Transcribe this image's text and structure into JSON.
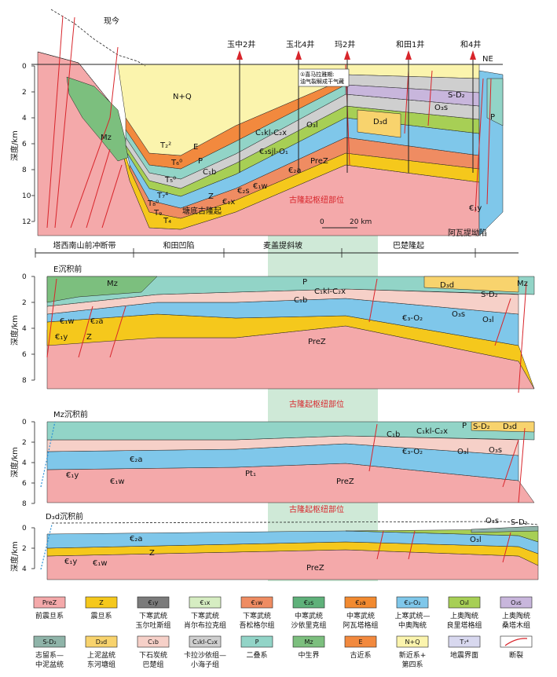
{
  "colors": {
    "PreZ": "#f4a9aa",
    "Z": "#f5c81c",
    "e1y": "#7b7b7b",
    "e1x": "#d6edc2",
    "e1w": "#ef8c62",
    "e2s": "#5fb17a",
    "e2a": "#f28a30",
    "e3O2": "#7fc7ea",
    "O3l": "#a7cf55",
    "O3s": "#c8b6dc",
    "SD2": "#8fb4a9",
    "D3d": "#f8d36d",
    "C1b": "#f6d0c8",
    "CklC2x": "#cfcfcf",
    "P": "#92d4c7",
    "Mz": "#7cbf7e",
    "E": "#f2893e",
    "NQ": "#fbf4ad",
    "T": "#d8d8ef",
    "fault": "#d8252b",
    "arch": "#cfe9d7",
    "line": "#222222"
  },
  "wells": [
    {
      "id": "w1",
      "name": "玉中2井"
    },
    {
      "id": "w2",
      "name": "玉北4井"
    },
    {
      "id": "w3",
      "name": "玛2井"
    },
    {
      "id": "w4",
      "name": "和田1井"
    },
    {
      "id": "w5",
      "name": "和4井"
    }
  ],
  "p1": {
    "present": "现今",
    "ne": "NE",
    "axis": "深度/km",
    "ticks": [
      "0",
      "2",
      "4",
      "6",
      "8",
      "10",
      "12"
    ],
    "annotation_line1": "①喜马拉雅期:",
    "annotation_line2": "油气裂解成干气藏",
    "labels": {
      "NQ": "N+Q",
      "Mz": "Mz",
      "E": "E",
      "P": "P",
      "C1b": "C₁b",
      "Z": "Z",
      "PreZ": "PreZ",
      "CklC2x": "C₁kl-C₂x",
      "O3l": "O₃l",
      "e3sjl": "€₃sjl-O₁",
      "e2a": "€₂a",
      "e2s": "€₂s",
      "e1w": "€₁w",
      "e1x": "€₁x",
      "D3d": "D₃d",
      "O3s": "O₃s",
      "SD2": "S-D₂",
      "e1y": "€₁y",
      "T2": "T₂²",
      "T6": "T₆⁰",
      "T5": "T₅⁰",
      "T7": "T₇⁴",
      "T8": "T₈⁰",
      "T9": "T₉",
      "T4": "T₄",
      "Mzb": "P",
      "Ob": "O₃l"
    },
    "arch": "古隆起枢纽部位",
    "uplift": "塘底古隆起",
    "scale0": "0",
    "scale1": "20 km",
    "regions": [
      "塔西南山前冲断带",
      "和田凹陷",
      "麦盖提斜坡",
      "巴楚隆起",
      "阿瓦提坳陷"
    ]
  },
  "p2": {
    "title": "E沉积前",
    "axis": "深度/km",
    "ticks": [
      "0",
      "2",
      "4",
      "6",
      "8"
    ],
    "labels": {
      "Mz": "Mz",
      "P": "P",
      "CklC2x": "C₁kl-C₂x",
      "C1b": "C₁b",
      "D3d": "D₃d",
      "SD2": "S-D₂",
      "O3s": "O₃s",
      "O3l": "O₃l",
      "e3O2": "€₃-O₂",
      "e1w": "€₁w",
      "e2a": "€₂a",
      "e1y": "€₁y",
      "Z": "Z",
      "PreZ": "PreZ",
      "Mz2": "Mz"
    },
    "arch": "古隆起枢纽部位"
  },
  "p3": {
    "title": "Mz沉积前",
    "axis": "深度/km",
    "ticks": [
      "0",
      "2",
      "4",
      "6",
      "8"
    ],
    "labels": {
      "C1b": "C₁b",
      "CklC2x": "C₁kl-C₂x",
      "P": "P",
      "SD2": "S-D₂",
      "D3d": "D₃d",
      "e3O2": "€₃-O₂",
      "O3l": "O₃l",
      "O3s": "O₃s",
      "e2a": "€₂a",
      "e1y": "€₁y",
      "e1w": "€₁w",
      "Pt1": "Pt₁",
      "PreZ": "PreZ"
    },
    "arch": "古隆起枢纽部位"
  },
  "p4": {
    "title": "D₃d沉积前",
    "axis": "深度/km",
    "ticks": [
      "0",
      "2",
      "4"
    ],
    "labels": {
      "e2a": "€₂a",
      "Z": "Z",
      "e1y": "€₁y",
      "e1w": "€₁w",
      "PreZ": "PreZ",
      "O3s": "O₃s",
      "SD2": "S-D₂",
      "O3l": "O₃l"
    }
  },
  "legend": [
    {
      "id": "PreZ",
      "code": "PreZ",
      "l1": "前震旦系",
      "l2": ""
    },
    {
      "id": "Z",
      "code": "Z",
      "l1": "震旦系",
      "l2": ""
    },
    {
      "id": "e1y",
      "code": "€₁y",
      "l1": "下寒武统",
      "l2": "玉尔吐斯组"
    },
    {
      "id": "e1x",
      "code": "€₁x",
      "l1": "下寒武统",
      "l2": "肖尔布拉克组"
    },
    {
      "id": "e1w",
      "code": "€₁w",
      "l1": "下寒武统",
      "l2": "吾松格尔组"
    },
    {
      "id": "e2s",
      "code": "€₂s",
      "l1": "中寒武统",
      "l2": "沙依里克组"
    },
    {
      "id": "e2a",
      "code": "€₂a",
      "l1": "中寒武统",
      "l2": "阿瓦塔格组"
    },
    {
      "id": "e3O2",
      "code": "€₃-O₂",
      "l1": "上寒武统—",
      "l2": "中奥陶统"
    },
    {
      "id": "O3l",
      "code": "O₃l",
      "l1": "上奥陶统",
      "l2": "良里塔格组"
    },
    {
      "id": "O3s",
      "code": "O₃s",
      "l1": "上奥陶统",
      "l2": "桑塔木组"
    },
    {
      "id": "SD2",
      "code": "S-D₂",
      "l1": "志留系—",
      "l2": "中泥盆统"
    },
    {
      "id": "D3d",
      "code": "D₃d",
      "l1": "上泥盆统",
      "l2": "东河塘组"
    },
    {
      "id": "C1b",
      "code": "C₁b",
      "l1": "下石炭统",
      "l2": "巴楚组"
    },
    {
      "id": "CklC2x",
      "code": "C₁kl-C₂x",
      "l1": "卡拉沙依组—",
      "l2": "小海子组"
    },
    {
      "id": "P",
      "code": "P",
      "l1": "二叠系",
      "l2": ""
    },
    {
      "id": "Mz",
      "code": "Mz",
      "l1": "中生界",
      "l2": ""
    },
    {
      "id": "E",
      "code": "E",
      "l1": "古近系",
      "l2": ""
    },
    {
      "id": "NQ",
      "code": "N+Q",
      "l1": "新近系+",
      "l2": "第四系"
    },
    {
      "id": "T",
      "code": "T₇⁴",
      "l1": "地震界面",
      "l2": ""
    },
    {
      "id": "fault",
      "code": "",
      "l1": "断裂",
      "l2": ""
    }
  ]
}
